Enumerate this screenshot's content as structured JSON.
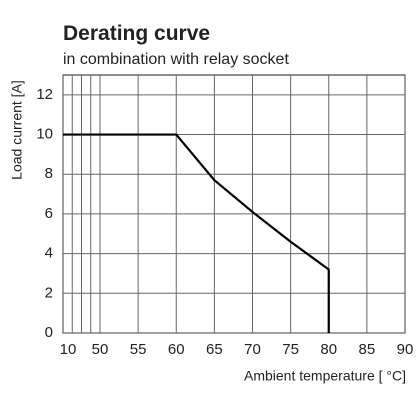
{
  "chart_data": {
    "type": "line",
    "title": "Derating curve",
    "subtitle": "in combination with relay socket",
    "x_label": "Ambient temperature [ °C]",
    "y_label": "Load current [A]",
    "x": [
      10,
      60,
      65,
      70,
      75,
      80,
      80
    ],
    "series": [
      {
        "name": "Load current",
        "color": "#000000",
        "values": [
          10,
          10,
          7.7,
          6.1,
          4.6,
          3.2,
          0
        ]
      }
    ],
    "xlim": [
      10,
      90
    ],
    "xticks": [
      10,
      50,
      55,
      60,
      65,
      70,
      75,
      80,
      85,
      90
    ],
    "xgrid_minor": [
      20,
      30,
      40
    ],
    "ylim": [
      0,
      13
    ],
    "yticks": [
      0,
      2,
      4,
      6,
      8,
      10,
      12
    ],
    "grid": true
  }
}
